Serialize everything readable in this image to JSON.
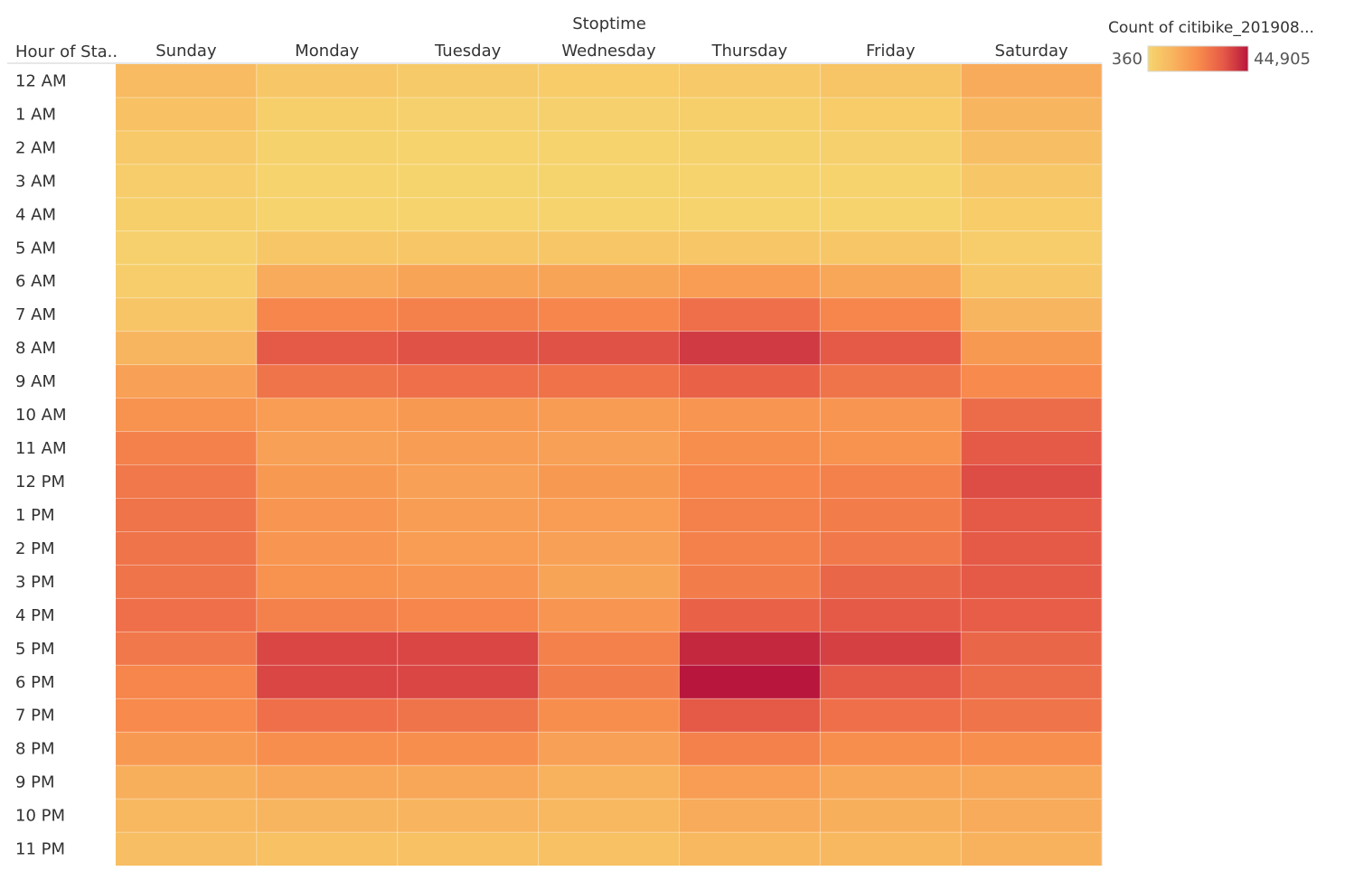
{
  "chart_data": {
    "type": "heatmap",
    "column_group_title": "Stoptime",
    "row_header": "Hour of Sta..",
    "columns": [
      "Sunday",
      "Monday",
      "Tuesday",
      "Wednesday",
      "Thursday",
      "Friday",
      "Saturday"
    ],
    "rows": [
      "12 AM",
      "1 AM",
      "2 AM",
      "3 AM",
      "4 AM",
      "5 AM",
      "6 AM",
      "7 AM",
      "8 AM",
      "9 AM",
      "10 AM",
      "11 AM",
      "12 PM",
      "1 PM",
      "2 PM",
      "3 PM",
      "4 PM",
      "5 PM",
      "6 PM",
      "7 PM",
      "8 PM",
      "9 PM",
      "10 PM",
      "11 PM"
    ],
    "values": [
      [
        9000,
        5000,
        4000,
        3500,
        4500,
        6000,
        14000
      ],
      [
        7000,
        2500,
        2000,
        2000,
        2500,
        3500,
        11000
      ],
      [
        4500,
        1500,
        1200,
        1200,
        1500,
        2000,
        8000
      ],
      [
        3000,
        900,
        800,
        800,
        900,
        1200,
        5500
      ],
      [
        2500,
        1000,
        900,
        900,
        1000,
        1000,
        3500
      ],
      [
        2000,
        5000,
        5000,
        5000,
        5500,
        5000,
        3000
      ],
      [
        3000,
        14000,
        16000,
        16000,
        18000,
        15000,
        5000
      ],
      [
        6000,
        24000,
        25000,
        24000,
        29000,
        24000,
        11000
      ],
      [
        11000,
        34000,
        35000,
        35000,
        39000,
        34000,
        19000
      ],
      [
        17000,
        28000,
        29000,
        28500,
        32000,
        28000,
        23000
      ],
      [
        21000,
        18000,
        19000,
        18500,
        20000,
        20000,
        30000
      ],
      [
        25000,
        17000,
        17500,
        17000,
        22000,
        21000,
        34000
      ],
      [
        27000,
        19000,
        17000,
        19000,
        24000,
        25000,
        36000
      ],
      [
        28000,
        20000,
        17500,
        18000,
        25000,
        26000,
        34000
      ],
      [
        28000,
        20000,
        18000,
        17000,
        25000,
        27000,
        34000
      ],
      [
        28000,
        21000,
        20000,
        16000,
        26000,
        31000,
        34000
      ],
      [
        29000,
        25000,
        24000,
        20000,
        32000,
        34000,
        33000
      ],
      [
        27000,
        37000,
        37000,
        25000,
        42000,
        38000,
        31000
      ],
      [
        24000,
        37000,
        37000,
        26000,
        44905,
        34000,
        30000
      ],
      [
        23000,
        29000,
        28000,
        22000,
        34000,
        29000,
        28000
      ],
      [
        19000,
        22000,
        22000,
        17000,
        25000,
        22000,
        22000
      ],
      [
        13000,
        15000,
        15000,
        12000,
        18000,
        15000,
        15000
      ],
      [
        10000,
        11000,
        11500,
        10000,
        14000,
        13000,
        14000
      ],
      [
        8000,
        7000,
        7000,
        7000,
        10000,
        10000,
        12000
      ]
    ],
    "color_scale": {
      "title": "Count of citibike_201908...",
      "min": 360,
      "max": 44905,
      "min_label": "360",
      "max_label": "44,905",
      "stops": [
        "#f6d56e",
        "#f8b45e",
        "#f88c4c",
        "#e65a47",
        "#b8163c"
      ]
    }
  }
}
